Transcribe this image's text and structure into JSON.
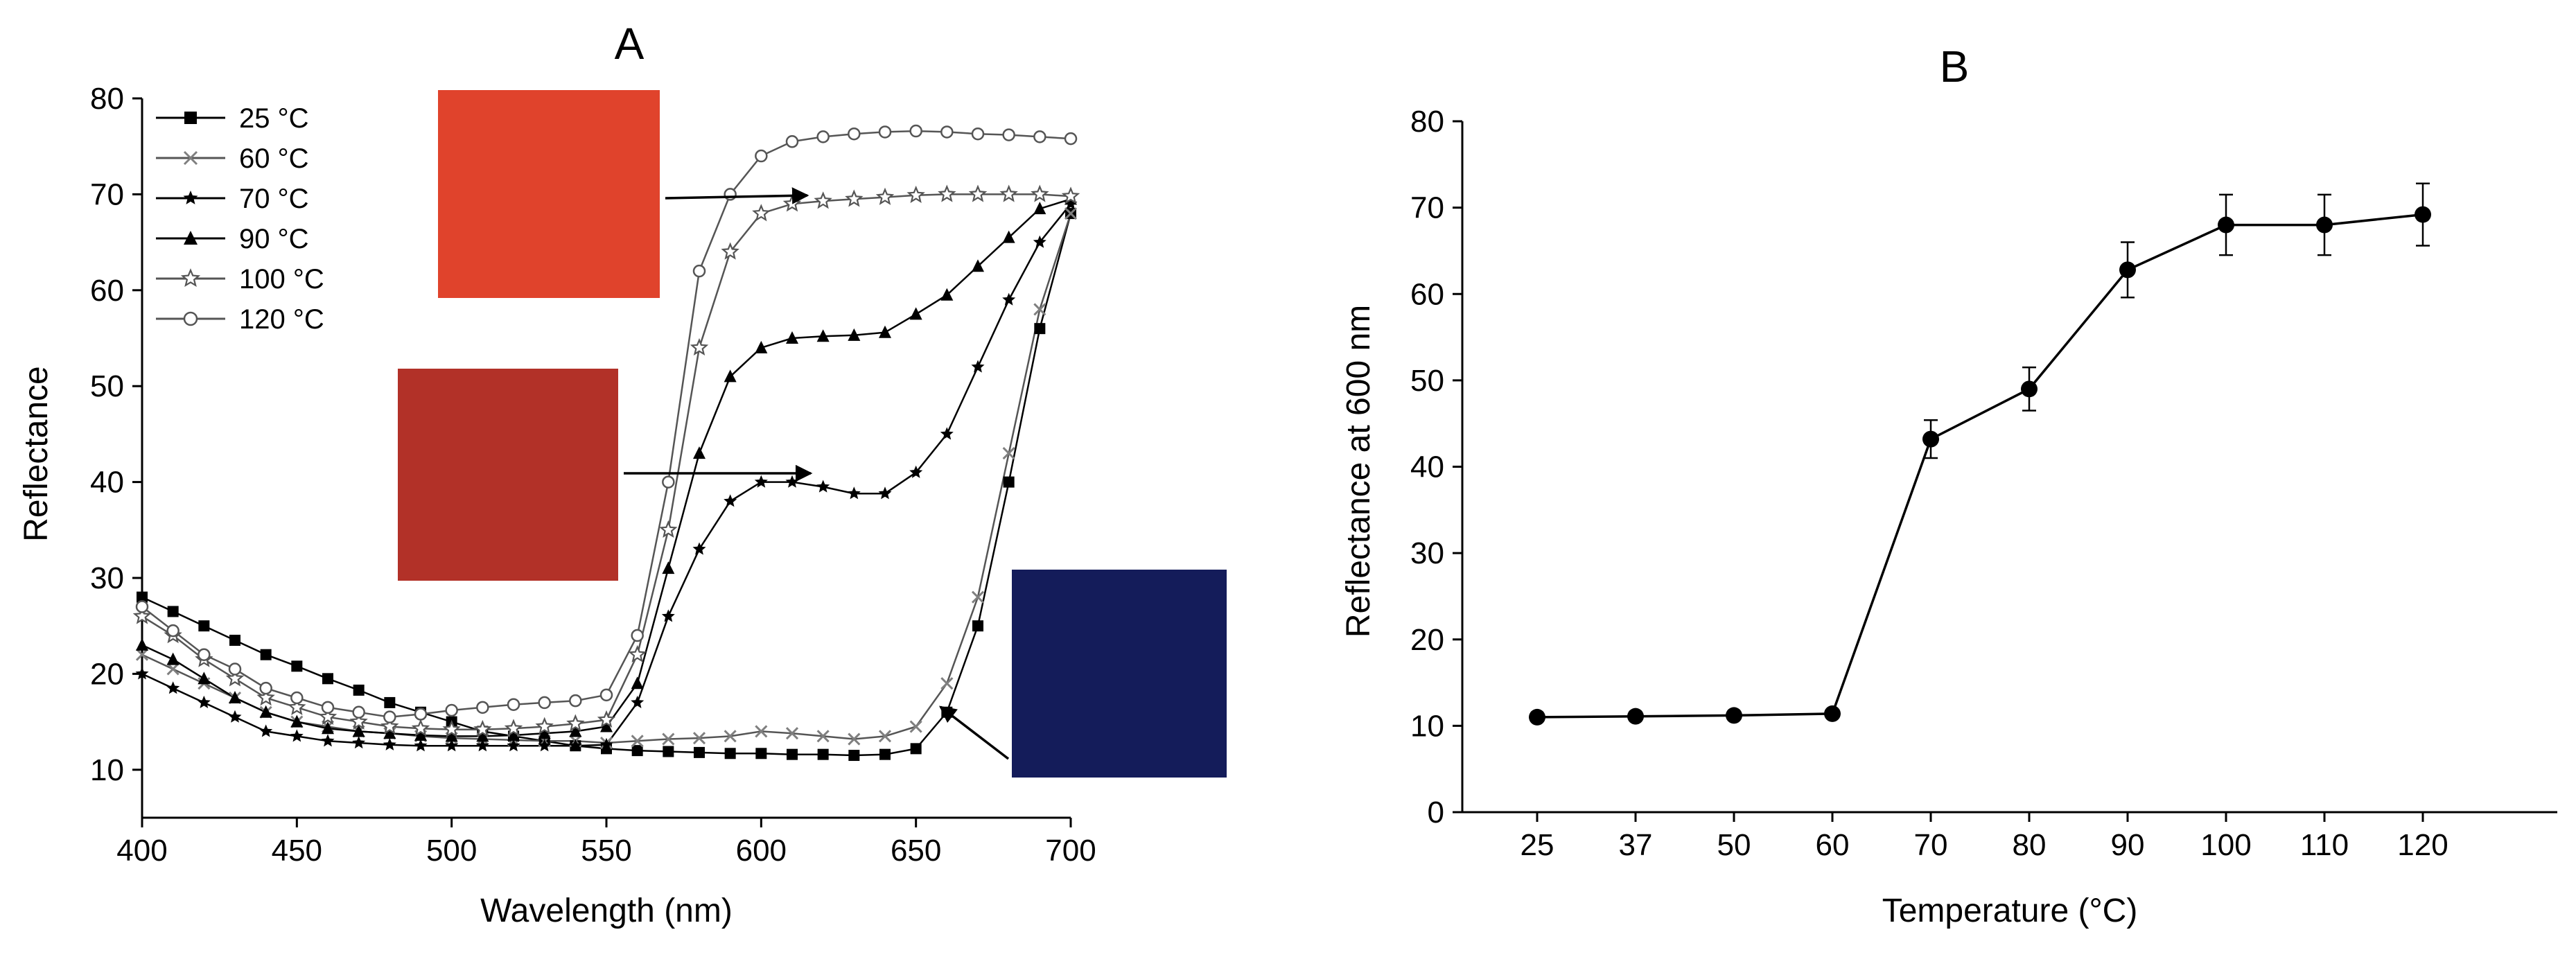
{
  "figure": {
    "panel_a_label": "A",
    "panel_b_label": "B"
  },
  "colors": {
    "swatch_high": "#e0432c",
    "swatch_mid": "#b23128",
    "swatch_low": "#141c5a",
    "series_black": "#000000",
    "series_gray": "#7f7f7f"
  },
  "chart_data": [
    {
      "id": "A",
      "type": "line",
      "title": "A",
      "xlabel": "Wavelength (nm)",
      "ylabel": "Reflectance",
      "xlim": [
        400,
        700
      ],
      "ylim": [
        5,
        80
      ],
      "xticks": [
        400,
        450,
        500,
        550,
        600,
        650,
        700
      ],
      "yticks": [
        10,
        20,
        30,
        40,
        50,
        60,
        70,
        80
      ],
      "grid": false,
      "legend_position": "top-left",
      "x": [
        400,
        410,
        420,
        430,
        440,
        450,
        460,
        470,
        480,
        490,
        500,
        510,
        520,
        530,
        540,
        550,
        560,
        570,
        580,
        590,
        600,
        610,
        620,
        630,
        640,
        650,
        660,
        670,
        680,
        690,
        700
      ],
      "series": [
        {
          "name": "25 °C",
          "marker": "square",
          "color": "#000000",
          "values": [
            28,
            26.5,
            25,
            23.5,
            22,
            20.8,
            19.5,
            18.3,
            17,
            16,
            15,
            14,
            13.5,
            13,
            12.5,
            12.2,
            12,
            11.9,
            11.8,
            11.7,
            11.7,
            11.6,
            11.6,
            11.5,
            11.6,
            12.2,
            16,
            25,
            40,
            56,
            68
          ]
        },
        {
          "name": "60 °C",
          "marker": "x",
          "color": "#7f7f7f",
          "values": [
            22,
            20.5,
            19,
            17.5,
            16,
            15,
            14.5,
            14,
            13.8,
            13.5,
            13.3,
            13.2,
            13.1,
            13,
            13,
            12.8,
            13,
            13.2,
            13.3,
            13.5,
            14,
            13.8,
            13.5,
            13.2,
            13.5,
            14.5,
            19,
            28,
            43,
            58,
            68
          ]
        },
        {
          "name": "70 °C",
          "marker": "star",
          "color": "#000000",
          "values": [
            20,
            18.5,
            17,
            15.5,
            14,
            13.5,
            13,
            12.8,
            12.6,
            12.5,
            12.5,
            12.5,
            12.5,
            12.5,
            12.5,
            12.6,
            17,
            26,
            33,
            38,
            40,
            40,
            39.5,
            38.8,
            38.8,
            41,
            45,
            52,
            59,
            65,
            69
          ]
        },
        {
          "name": "90 °C",
          "marker": "triangle",
          "color": "#000000",
          "values": [
            23,
            21.5,
            19.5,
            17.5,
            16,
            15,
            14.3,
            14,
            13.8,
            13.6,
            13.5,
            13.5,
            13.6,
            13.8,
            14,
            14.5,
            19,
            31,
            43,
            51,
            54,
            55,
            55.2,
            55.3,
            55.6,
            57.5,
            59.5,
            62.5,
            65.5,
            68.5,
            69.5
          ]
        },
        {
          "name": "100 °C",
          "marker": "star-open",
          "color": "#7f7f7f",
          "values": [
            26,
            24,
            21.5,
            19.5,
            17.5,
            16.5,
            15.5,
            15,
            14.5,
            14.3,
            14.2,
            14.2,
            14.3,
            14.5,
            14.8,
            15.2,
            22,
            35,
            54,
            64,
            68,
            69,
            69.3,
            69.5,
            69.7,
            69.9,
            70,
            70,
            70,
            70,
            69.8
          ]
        },
        {
          "name": "120 °C",
          "marker": "circle-open",
          "color": "#7f7f7f",
          "values": [
            27,
            24.5,
            22,
            20.5,
            18.5,
            17.5,
            16.5,
            16,
            15.5,
            15.8,
            16.2,
            16.5,
            16.8,
            17,
            17.2,
            17.8,
            24,
            40,
            62,
            70,
            74,
            75.5,
            76,
            76.3,
            76.5,
            76.6,
            76.5,
            76.3,
            76.2,
            76,
            75.8
          ]
        }
      ]
    },
    {
      "id": "B",
      "type": "line",
      "title": "B",
      "xlabel": "Temperature (°C)",
      "ylabel": "Reflectance at 600 nm",
      "ylim": [
        0,
        80
      ],
      "yticks": [
        0,
        10,
        20,
        30,
        40,
        50,
        60,
        70,
        80
      ],
      "grid": false,
      "legend_position": "none",
      "categories": [
        "25",
        "37",
        "50",
        "60",
        "70",
        "80",
        "90",
        "100",
        "110",
        "120"
      ],
      "series": [
        {
          "marker": "circle",
          "color": "#000000",
          "values": [
            11,
            11.1,
            11.2,
            11.4,
            43.2,
            49,
            62.8,
            68,
            68,
            69.2
          ],
          "errors": [
            0,
            0,
            0,
            0,
            2.2,
            2.5,
            3.2,
            3.5,
            3.5,
            3.6
          ]
        }
      ]
    }
  ]
}
